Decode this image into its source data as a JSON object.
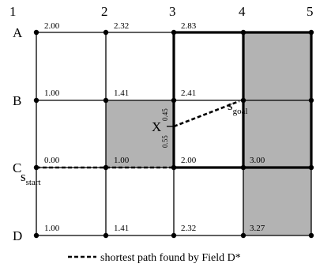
{
  "grid": {
    "column_labels": [
      "1",
      "2",
      "3",
      "4",
      "5"
    ],
    "row_labels": [
      "A",
      "B",
      "C",
      "D"
    ],
    "node_values": [
      [
        "2.00",
        "2.32",
        "2.83",
        "",
        ""
      ],
      [
        "1.00",
        "1.41",
        "2.41",
        "",
        ""
      ],
      [
        "0.00",
        "1.00",
        "2.00",
        "3.00",
        ""
      ],
      [
        "1.00",
        "1.41",
        "2.32",
        "3.27",
        ""
      ]
    ],
    "colors": {
      "obstacle_fill": "#b3b3b3",
      "grid_line": "#000000",
      "path_line": "#000000"
    }
  },
  "annotations": {
    "start": {
      "main": "s",
      "sub": "start"
    },
    "goal": {
      "main": "s",
      "sub": "goal"
    },
    "x_marker": "X",
    "dist_upper": "0.45",
    "dist_lower": "0.55"
  },
  "legend": {
    "text": "shortest path found by Field D*"
  }
}
